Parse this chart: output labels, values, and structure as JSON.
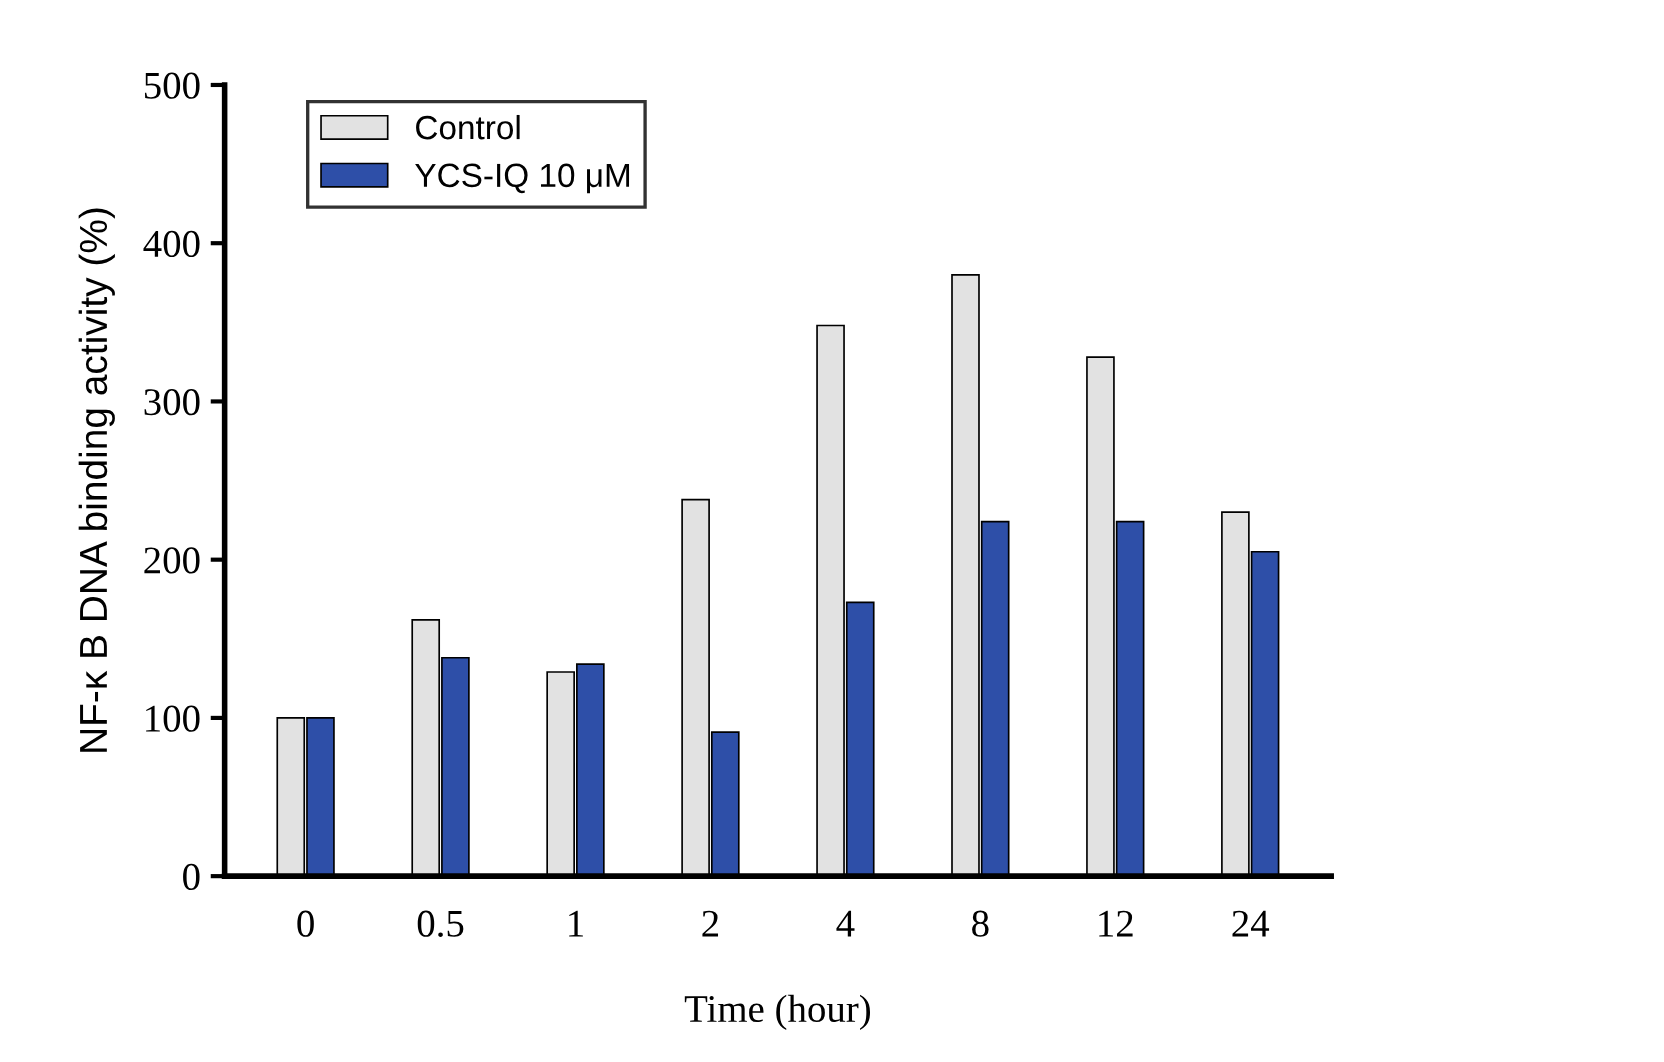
{
  "chart_data": {
    "type": "bar",
    "xlabel": "Time (hour)",
    "ylabel": "NF-κ B DNA binding activity (%)",
    "categories": [
      "0",
      "0.5",
      "1",
      "2",
      "4",
      "8",
      "12",
      "24"
    ],
    "series": [
      {
        "name": "Control",
        "color": "#e2e2e2",
        "values": [
          100,
          162,
          129,
          238,
          348,
          380,
          328,
          230
        ]
      },
      {
        "name": "YCS-IQ 10 μM",
        "color": "#2e4fa8",
        "values": [
          100,
          138,
          134,
          91,
          173,
          224,
          224,
          205
        ]
      }
    ],
    "ylim": [
      0,
      500
    ],
    "yticks": [
      0,
      100,
      200,
      300,
      400,
      500
    ],
    "grid": false,
    "legend": "top left"
  }
}
